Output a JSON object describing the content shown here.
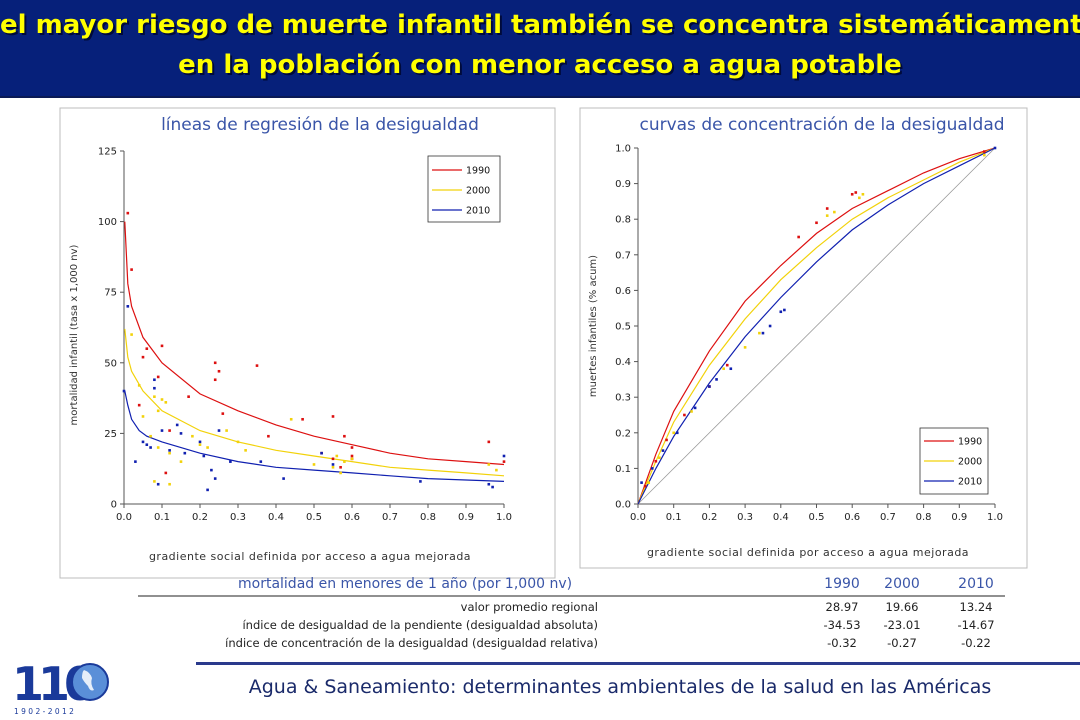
{
  "title": {
    "line1": "el mayor riesgo de muerte infantil también se concentra sistemáticamente",
    "line2": "en la población con menor acceso a agua potable"
  },
  "colors": {
    "c1990": "#dd1010",
    "c2000": "#f2d20a",
    "c2010": "#1020b0"
  },
  "chart_data": [
    {
      "type": "scatter",
      "title": "líneas de regresión de la desigualdad",
      "xlabel": "gradiente social definida por acceso a agua mejorada",
      "ylabel": "mortalidad infantil (tasa x 1,000 nv)",
      "xlim": [
        0,
        1
      ],
      "ylim": [
        0,
        125
      ],
      "xticks": [
        "0.0",
        "0.1",
        "0.2",
        "0.3",
        "0.4",
        "0.5",
        "0.6",
        "0.7",
        "0.8",
        "0.9",
        "1.0"
      ],
      "yticks": [
        "0",
        "25",
        "50",
        "75",
        "100",
        "125"
      ],
      "legend": [
        "1990",
        "2000",
        "2010"
      ],
      "legend_position": "top-right",
      "series": [
        {
          "name": "1990",
          "color": "#dd1010",
          "points": [
            [
              0.01,
              103
            ],
            [
              0.02,
              83
            ],
            [
              0.05,
              52
            ],
            [
              0.06,
              55
            ],
            [
              0.1,
              56
            ],
            [
              0.04,
              35
            ],
            [
              0.09,
              45
            ],
            [
              0.12,
              26
            ],
            [
              0.17,
              38
            ],
            [
              0.24,
              50
            ],
            [
              0.25,
              47
            ],
            [
              0.24,
              44
            ],
            [
              0.26,
              32
            ],
            [
              0.35,
              49
            ],
            [
              0.38,
              24
            ],
            [
              0.47,
              30
            ],
            [
              0.52,
              18
            ],
            [
              0.55,
              31
            ],
            [
              0.55,
              16
            ],
            [
              0.58,
              24
            ],
            [
              0.6,
              20
            ],
            [
              0.6,
              17
            ],
            [
              0.6,
              16
            ],
            [
              0.57,
              13
            ],
            [
              0.96,
              22
            ],
            [
              1.0,
              15
            ],
            [
              0.11,
              11
            ]
          ],
          "fit": [
            [
              0.002,
              100
            ],
            [
              0.01,
              78
            ],
            [
              0.02,
              70
            ],
            [
              0.05,
              59
            ],
            [
              0.1,
              50
            ],
            [
              0.2,
              39
            ],
            [
              0.3,
              33
            ],
            [
              0.4,
              28
            ],
            [
              0.5,
              24
            ],
            [
              0.6,
              21
            ],
            [
              0.7,
              18
            ],
            [
              0.8,
              16
            ],
            [
              0.9,
              15
            ],
            [
              1.0,
              14
            ]
          ]
        },
        {
          "name": "2000",
          "color": "#f2d20a",
          "points": [
            [
              0.02,
              60
            ],
            [
              0.04,
              42
            ],
            [
              0.08,
              38
            ],
            [
              0.09,
              33
            ],
            [
              0.1,
              37
            ],
            [
              0.11,
              36
            ],
            [
              0.05,
              31
            ],
            [
              0.07,
              24
            ],
            [
              0.09,
              20
            ],
            [
              0.12,
              18
            ],
            [
              0.15,
              15
            ],
            [
              0.18,
              24
            ],
            [
              0.2,
              21
            ],
            [
              0.22,
              20
            ],
            [
              0.27,
              26
            ],
            [
              0.3,
              22
            ],
            [
              0.32,
              19
            ],
            [
              0.44,
              30
            ],
            [
              0.5,
              14
            ],
            [
              0.55,
              13
            ],
            [
              0.56,
              17
            ],
            [
              0.57,
              11
            ],
            [
              0.58,
              15
            ],
            [
              0.6,
              16
            ],
            [
              0.96,
              14
            ],
            [
              0.98,
              12
            ],
            [
              0.12,
              7
            ],
            [
              0.08,
              8
            ]
          ],
          "fit": [
            [
              0.002,
              62
            ],
            [
              0.01,
              52
            ],
            [
              0.02,
              47
            ],
            [
              0.05,
              40
            ],
            [
              0.1,
              33
            ],
            [
              0.2,
              26
            ],
            [
              0.3,
              22
            ],
            [
              0.4,
              19
            ],
            [
              0.5,
              17
            ],
            [
              0.6,
              15
            ],
            [
              0.7,
              13
            ],
            [
              0.8,
              12
            ],
            [
              0.9,
              11
            ],
            [
              1.0,
              10
            ]
          ]
        },
        {
          "name": "2010",
          "color": "#1020b0",
          "points": [
            [
              0.0,
              40
            ],
            [
              0.01,
              70
            ],
            [
              0.03,
              15
            ],
            [
              0.05,
              22
            ],
            [
              0.06,
              21
            ],
            [
              0.07,
              20
            ],
            [
              0.08,
              44
            ],
            [
              0.08,
              41
            ],
            [
              0.1,
              26
            ],
            [
              0.12,
              19
            ],
            [
              0.14,
              28
            ],
            [
              0.15,
              25
            ],
            [
              0.16,
              18
            ],
            [
              0.2,
              22
            ],
            [
              0.21,
              17
            ],
            [
              0.22,
              5
            ],
            [
              0.23,
              12
            ],
            [
              0.24,
              9
            ],
            [
              0.25,
              26
            ],
            [
              0.28,
              15
            ],
            [
              0.36,
              15
            ],
            [
              0.42,
              9
            ],
            [
              0.52,
              18
            ],
            [
              0.55,
              14
            ],
            [
              0.78,
              8
            ],
            [
              0.96,
              7
            ],
            [
              0.97,
              6
            ],
            [
              1.0,
              17
            ],
            [
              0.09,
              7
            ]
          ],
          "fit": [
            [
              0.002,
              40
            ],
            [
              0.01,
              35
            ],
            [
              0.02,
              30
            ],
            [
              0.04,
              26
            ],
            [
              0.06,
              24
            ],
            [
              0.1,
              22
            ],
            [
              0.2,
              18
            ],
            [
              0.3,
              15
            ],
            [
              0.4,
              13
            ],
            [
              0.5,
              12
            ],
            [
              0.6,
              11
            ],
            [
              0.7,
              10
            ],
            [
              0.8,
              9
            ],
            [
              0.9,
              8.5
            ],
            [
              1.0,
              8
            ]
          ]
        }
      ]
    },
    {
      "type": "line",
      "title": "curvas de concentración de la desigualdad",
      "xlabel": "gradiente social definida por acceso a agua mejorada",
      "ylabel": "muertes infantiles (% acum)",
      "xlim": [
        0,
        1
      ],
      "ylim": [
        0,
        1
      ],
      "xticks": [
        "0.0",
        "0.1",
        "0.2",
        "0.3",
        "0.4",
        "0.5",
        "0.6",
        "0.7",
        "0.8",
        "0.9",
        "1.0"
      ],
      "yticks": [
        "0.0",
        "0.1",
        "0.2",
        "0.3",
        "0.4",
        "0.5",
        "0.6",
        "0.7",
        "0.8",
        "0.9",
        "1.0"
      ],
      "legend": [
        "1990",
        "2000",
        "2010"
      ],
      "legend_position": "bottom-right",
      "series": [
        {
          "name": "1990",
          "color": "#dd1010",
          "curve": [
            [
              0,
              0
            ],
            [
              0.05,
              0.14
            ],
            [
              0.1,
              0.26
            ],
            [
              0.2,
              0.43
            ],
            [
              0.3,
              0.57
            ],
            [
              0.4,
              0.67
            ],
            [
              0.5,
              0.76
            ],
            [
              0.6,
              0.83
            ],
            [
              0.7,
              0.88
            ],
            [
              0.8,
              0.93
            ],
            [
              0.9,
              0.97
            ],
            [
              1,
              1
            ]
          ],
          "points": [
            [
              0.02,
              0.05
            ],
            [
              0.05,
              0.12
            ],
            [
              0.08,
              0.18
            ],
            [
              0.13,
              0.25
            ],
            [
              0.2,
              0.33
            ],
            [
              0.25,
              0.39
            ],
            [
              0.45,
              0.75
            ],
            [
              0.5,
              0.79
            ],
            [
              0.53,
              0.83
            ],
            [
              0.6,
              0.87
            ],
            [
              0.61,
              0.875
            ],
            [
              0.97,
              0.99
            ]
          ]
        },
        {
          "name": "2000",
          "color": "#f2d20a",
          "curve": [
            [
              0,
              0
            ],
            [
              0.05,
              0.12
            ],
            [
              0.1,
              0.23
            ],
            [
              0.2,
              0.39
            ],
            [
              0.3,
              0.52
            ],
            [
              0.4,
              0.63
            ],
            [
              0.5,
              0.72
            ],
            [
              0.6,
              0.8
            ],
            [
              0.7,
              0.86
            ],
            [
              0.8,
              0.91
            ],
            [
              0.9,
              0.96
            ],
            [
              1,
              1
            ]
          ],
          "points": [
            [
              0.03,
              0.06
            ],
            [
              0.06,
              0.13
            ],
            [
              0.1,
              0.2
            ],
            [
              0.15,
              0.26
            ],
            [
              0.24,
              0.38
            ],
            [
              0.3,
              0.44
            ],
            [
              0.34,
              0.48
            ],
            [
              0.53,
              0.81
            ],
            [
              0.55,
              0.82
            ],
            [
              0.62,
              0.86
            ],
            [
              0.63,
              0.87
            ],
            [
              0.97,
              0.98
            ]
          ]
        },
        {
          "name": "2010",
          "color": "#1020b0",
          "curve": [
            [
              0,
              0
            ],
            [
              0.05,
              0.1
            ],
            [
              0.1,
              0.19
            ],
            [
              0.2,
              0.34
            ],
            [
              0.3,
              0.47
            ],
            [
              0.4,
              0.58
            ],
            [
              0.5,
              0.68
            ],
            [
              0.6,
              0.77
            ],
            [
              0.7,
              0.84
            ],
            [
              0.8,
              0.9
            ],
            [
              0.9,
              0.95
            ],
            [
              1,
              1
            ]
          ],
          "points": [
            [
              0.01,
              0.06
            ],
            [
              0.04,
              0.1
            ],
            [
              0.07,
              0.15
            ],
            [
              0.11,
              0.2
            ],
            [
              0.16,
              0.27
            ],
            [
              0.2,
              0.33
            ],
            [
              0.22,
              0.35
            ],
            [
              0.26,
              0.38
            ],
            [
              0.35,
              0.48
            ],
            [
              0.37,
              0.5
            ],
            [
              0.4,
              0.54
            ],
            [
              0.41,
              0.545
            ],
            [
              1.0,
              1.0
            ]
          ]
        }
      ]
    },
    {
      "type": "table",
      "title": "mortalidad en menores de 1 año (por 1,000 nv)",
      "columns": [
        "1990",
        "2000",
        "2010"
      ],
      "rows": [
        {
          "label": "valor promedio regional",
          "values": [
            "28.97",
            "19.66",
            "13.24"
          ]
        },
        {
          "label": "índice de desigualdad de la pendiente (desigualdad absoluta)",
          "values": [
            "-34.53",
            "-23.01",
            "-14.67"
          ]
        },
        {
          "label": "índice de concentración de la desigualdad (desigualdad relativa)",
          "values": [
            "-0.32",
            "-0.27",
            "-0.22"
          ]
        }
      ]
    }
  ],
  "footer": {
    "text": "Agua & Saneamiento: determinantes ambientales de la salud en las Américas",
    "logo_number": "110",
    "logo_years": "1 9 0 2 - 2 0 1 2"
  }
}
